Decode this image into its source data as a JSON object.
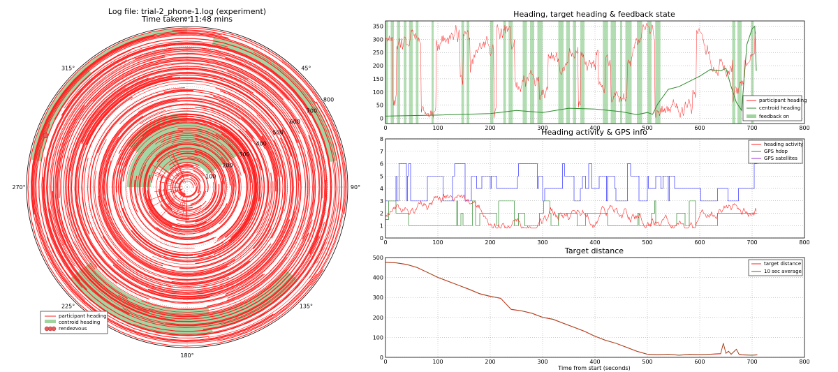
{
  "colors": {
    "participant": "#ff2020",
    "centroid": "#2c8a2c",
    "feedback": "#9fd49f",
    "gps_sat": "#3333ff",
    "rendezvous": "#e85c5c"
  },
  "chart_data": [
    {
      "type": "polar",
      "title": "Log file: trial-2_phone-1.log (experiment)",
      "subtitle": "Time taken: 11:48 mins",
      "angle_labels": [
        "0°",
        "45°",
        "90°",
        "135°",
        "180°",
        "225°",
        "270°",
        "315°"
      ],
      "radial_ticks": [
        "100",
        "200",
        "300",
        "400",
        "500",
        "600",
        "700",
        "800"
      ],
      "r_max": 800,
      "series": [
        {
          "name": "participant heading",
          "note_hidden": false
        },
        {
          "name": "centroid heading"
        },
        {
          "name": "rendezvous"
        }
      ]
    },
    {
      "type": "line",
      "title": "Heading, target heading & feedback state",
      "xlim": [
        0,
        800
      ],
      "ylim": [
        -20,
        370
      ],
      "xticks": [
        0,
        100,
        200,
        300,
        400,
        500,
        600,
        700,
        800
      ],
      "yticks": [
        0,
        50,
        100,
        150,
        200,
        250,
        300,
        350
      ],
      "series": [
        {
          "name": "participant heading"
        },
        {
          "name": "centroid heading",
          "x": [
            0,
            100,
            200,
            250,
            300,
            350,
            400,
            450,
            480,
            500,
            510,
            520,
            540,
            560,
            600,
            620,
            640,
            650,
            660,
            670,
            680,
            690,
            700,
            705,
            708
          ],
          "values": [
            8,
            12,
            18,
            30,
            22,
            38,
            35,
            25,
            14,
            22,
            15,
            55,
            110,
            120,
            160,
            185,
            180,
            190,
            120,
            60,
            30,
            280,
            340,
            350,
            180
          ]
        },
        {
          "name": "feedback on",
          "intervals": [
            [
              0,
              5
            ],
            [
              10,
              16
            ],
            [
              22,
              28
            ],
            [
              35,
              40
            ],
            [
              45,
              52
            ],
            [
              58,
              63
            ],
            [
              88,
              92
            ],
            [
              145,
              150
            ],
            [
              155,
              160
            ],
            [
              200,
              206
            ],
            [
              225,
              230
            ],
            [
              235,
              243
            ],
            [
              262,
              270
            ],
            [
              276,
              284
            ],
            [
              290,
              300
            ],
            [
              330,
              340
            ],
            [
              345,
              352
            ],
            [
              358,
              364
            ],
            [
              372,
              380
            ],
            [
              415,
              425
            ],
            [
              430,
              440
            ],
            [
              448,
              452
            ],
            [
              458,
              470
            ],
            [
              480,
              490
            ],
            [
              500,
              508
            ],
            [
              515,
              525
            ],
            [
              662,
              668
            ],
            [
              672,
              680
            ],
            [
              698,
              703
            ]
          ]
        }
      ]
    },
    {
      "type": "line",
      "title": "Heading activity & GPS info",
      "xlim": [
        0,
        800
      ],
      "ylim": [
        0,
        8
      ],
      "xticks": [
        0,
        100,
        200,
        300,
        400,
        500,
        600,
        700,
        800
      ],
      "yticks": [
        0,
        1,
        2,
        3,
        4,
        5,
        6,
        7,
        8
      ],
      "series": [
        {
          "name": "heading activity"
        },
        {
          "name": "GPS hdop"
        },
        {
          "name": "GPS satellites"
        }
      ]
    },
    {
      "type": "line",
      "title": "Target distance",
      "xlabel": "Time from start (seconds)",
      "xlim": [
        0,
        800
      ],
      "ylim": [
        0,
        500
      ],
      "xticks": [
        0,
        100,
        200,
        300,
        400,
        500,
        600,
        700,
        800
      ],
      "yticks": [
        0,
        100,
        200,
        300,
        400,
        500
      ],
      "series": [
        {
          "name": "target distance",
          "x": [
            0,
            20,
            40,
            60,
            80,
            100,
            120,
            140,
            160,
            180,
            200,
            220,
            240,
            260,
            280,
            300,
            320,
            340,
            360,
            380,
            400,
            420,
            440,
            460,
            480,
            500,
            520,
            540,
            560,
            580,
            600,
            620,
            640,
            645,
            650,
            655,
            660,
            670,
            675,
            680,
            700,
            710
          ],
          "values": [
            475,
            473,
            465,
            450,
            425,
            400,
            380,
            360,
            340,
            318,
            305,
            295,
            240,
            232,
            220,
            200,
            190,
            170,
            150,
            130,
            105,
            85,
            70,
            50,
            30,
            15,
            12,
            15,
            10,
            14,
            12,
            15,
            18,
            70,
            20,
            30,
            15,
            40,
            15,
            12,
            10,
            12
          ]
        },
        {
          "name": "10 sec average"
        }
      ]
    }
  ]
}
